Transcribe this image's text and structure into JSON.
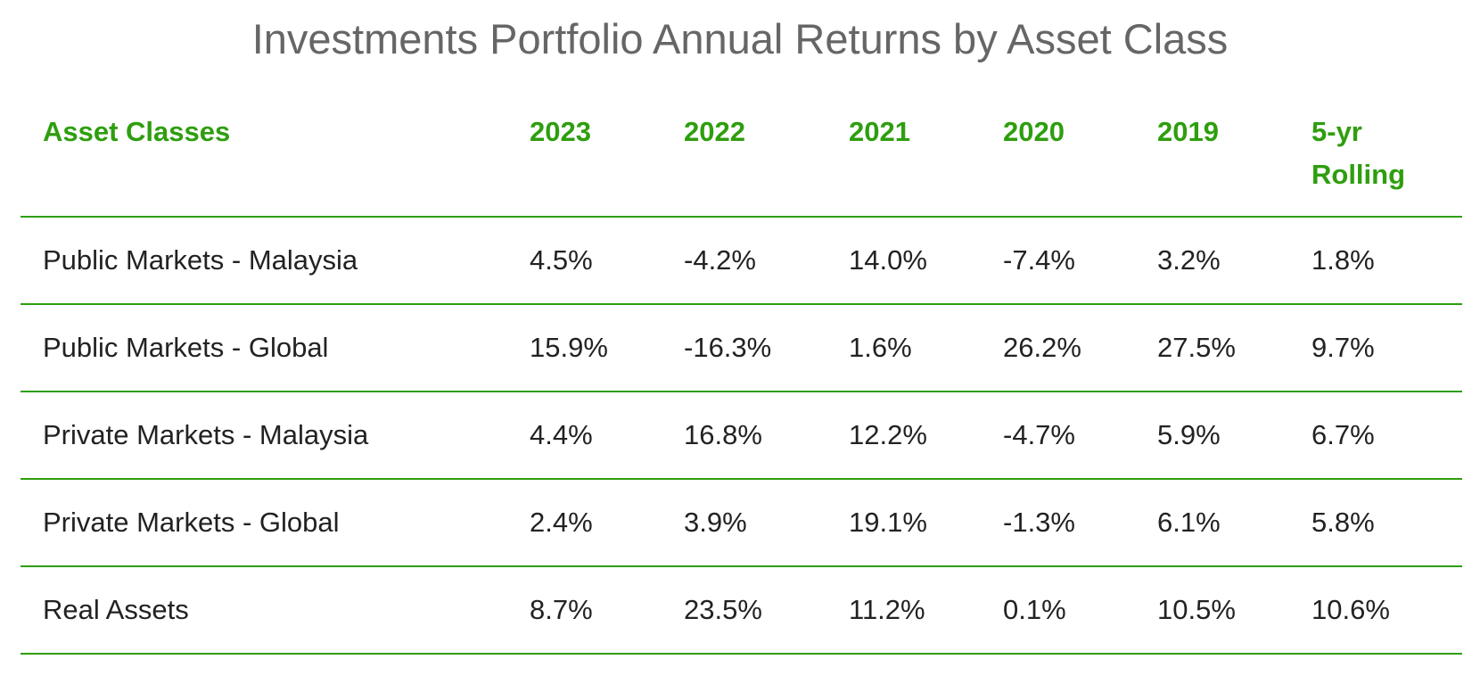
{
  "chart_data": {
    "type": "table",
    "title": "Investments Portfolio Annual Returns by Asset Class",
    "columns": [
      "Asset Classes",
      "2023",
      "2022",
      "2021",
      "2020",
      "2019",
      "5-yr Rolling"
    ],
    "rows": [
      {
        "label": "Public Markets - Malaysia",
        "values": [
          "4.5%",
          "-4.2%",
          "14.0%",
          "-7.4%",
          "3.2%",
          "1.8%"
        ]
      },
      {
        "label": "Public Markets - Global",
        "values": [
          "15.9%",
          "-16.3%",
          "1.6%",
          "26.2%",
          "27.5%",
          "9.7%"
        ]
      },
      {
        "label": "Private Markets - Malaysia",
        "values": [
          "4.4%",
          "16.8%",
          "12.2%",
          "-4.7%",
          "5.9%",
          "6.7%"
        ]
      },
      {
        "label": "Private Markets - Global",
        "values": [
          "2.4%",
          "3.9%",
          "19.1%",
          "-1.3%",
          "6.1%",
          "5.8%"
        ]
      },
      {
        "label": "Real Assets",
        "values": [
          "8.7%",
          "23.5%",
          "11.2%",
          "0.1%",
          "10.5%",
          "10.6%"
        ]
      }
    ]
  },
  "colors": {
    "accent": "#2e9e0e",
    "title": "#666666",
    "text": "#222222"
  }
}
